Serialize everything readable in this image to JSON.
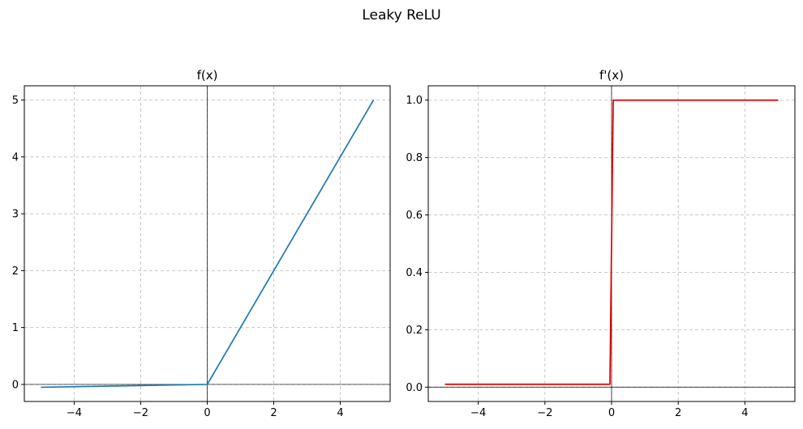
{
  "figure": {
    "title": "Leaky ReLU"
  },
  "chart_data": [
    {
      "type": "line",
      "title": "f(x)",
      "xlabel": "",
      "ylabel": "",
      "xlim": [
        -5.5,
        5.5
      ],
      "ylim": [
        -0.3,
        5.25
      ],
      "xticks": [
        -4,
        -2,
        0,
        2,
        4
      ],
      "xtick_labels": [
        "−4",
        "−2",
        "0",
        "2",
        "4"
      ],
      "yticks": [
        0,
        1,
        2,
        3,
        4,
        5
      ],
      "ytick_labels": [
        "0",
        "1",
        "2",
        "3",
        "4",
        "5"
      ],
      "grid": true,
      "reference_lines": {
        "x": 0,
        "y": 0
      },
      "series": [
        {
          "color": "#1f77b4",
          "x": [
            -5,
            -0.05,
            0,
            0.05,
            5
          ],
          "y": [
            -0.05,
            -0.0005,
            0,
            0.05,
            5
          ]
        }
      ]
    },
    {
      "type": "line",
      "title": "f'(x)",
      "xlabel": "",
      "ylabel": "",
      "xlim": [
        -5.5,
        5.5
      ],
      "ylim": [
        -0.05,
        1.05
      ],
      "xticks": [
        -4,
        -2,
        0,
        2,
        4
      ],
      "xtick_labels": [
        "−4",
        "−2",
        "0",
        "2",
        "4"
      ],
      "yticks": [
        0,
        0.2,
        0.4,
        0.6,
        0.8,
        1.0
      ],
      "ytick_labels": [
        "0.0",
        "0.2",
        "0.4",
        "0.6",
        "0.8",
        "1.0"
      ],
      "grid": true,
      "reference_lines": {
        "x": 0,
        "y": 0
      },
      "series": [
        {
          "color": "#e00000",
          "x": [
            -5,
            -0.05,
            0.05,
            5
          ],
          "y": [
            0.01,
            0.01,
            1,
            1
          ]
        }
      ]
    }
  ]
}
